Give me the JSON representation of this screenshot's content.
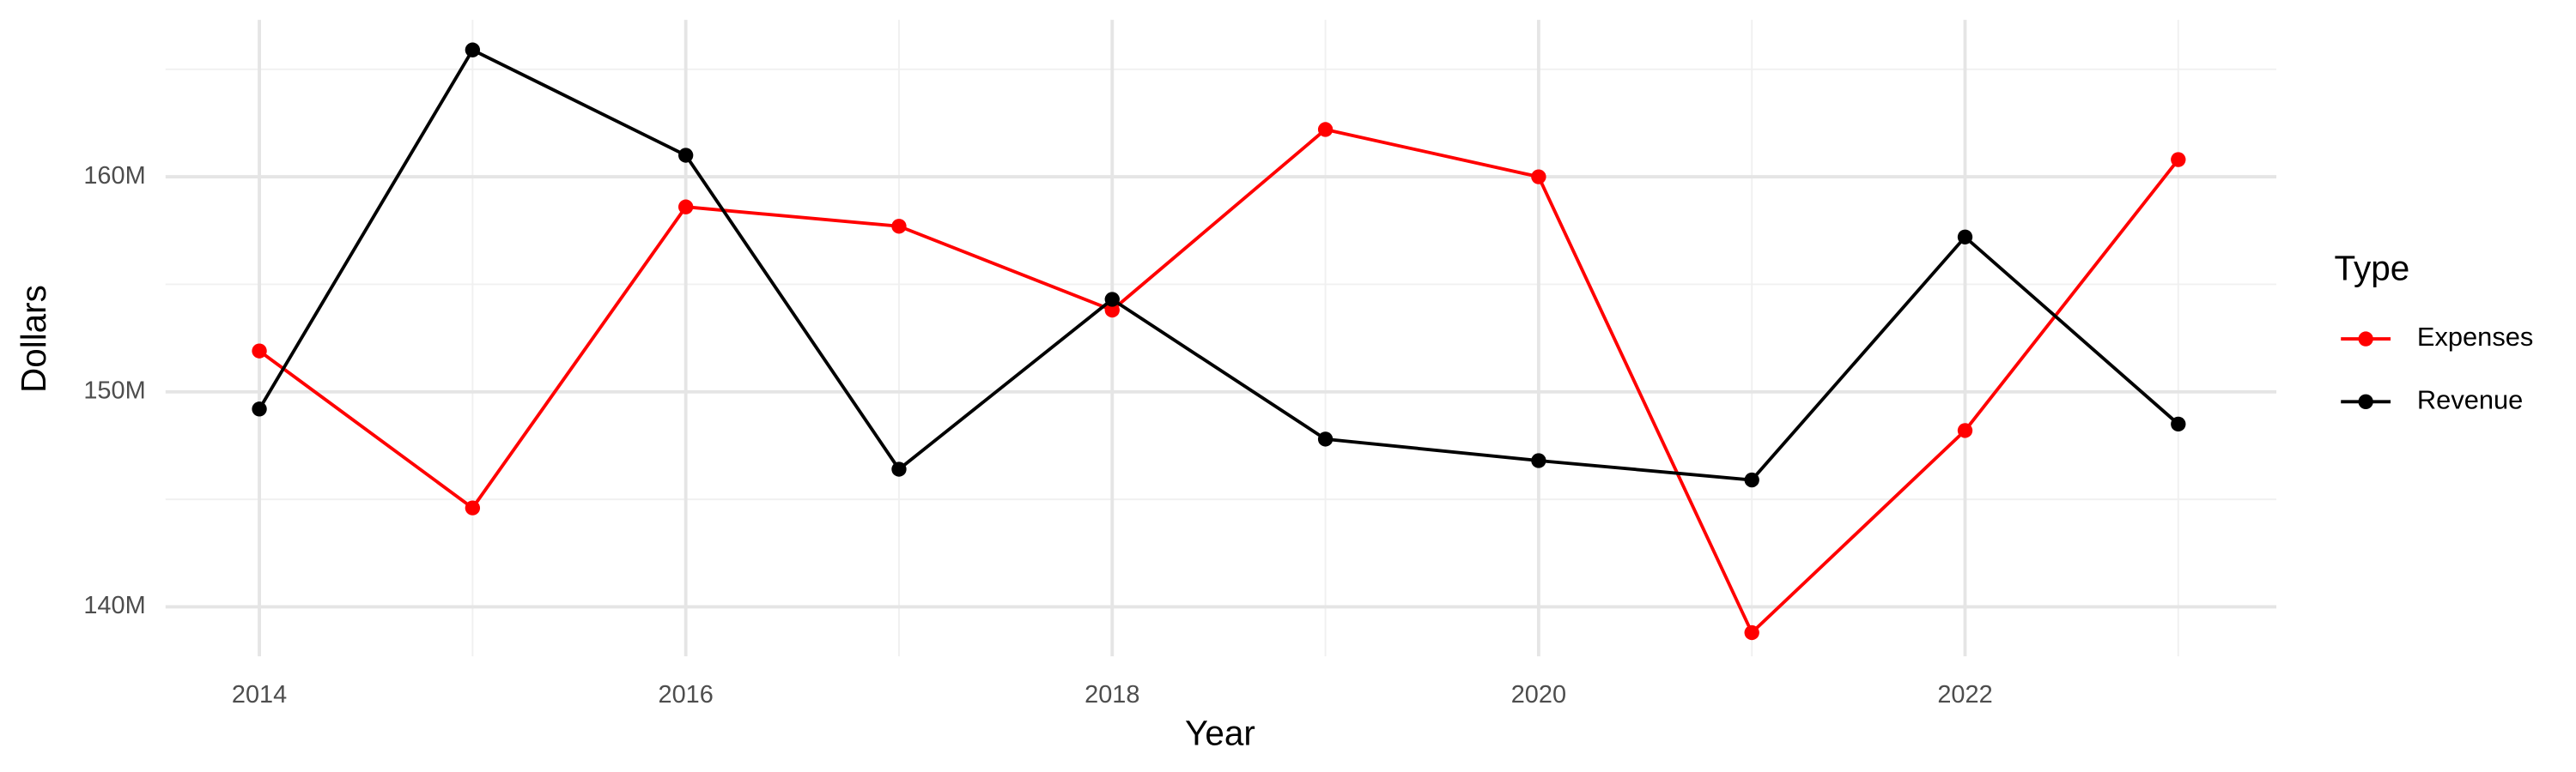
{
  "chart_data": {
    "type": "line",
    "x_label": "Year",
    "y_label": "Dollars",
    "legend_title": "Type",
    "x": [
      2014,
      2015,
      2016,
      2017,
      2018,
      2019,
      2020,
      2021,
      2022,
      2023
    ],
    "series": [
      {
        "name": "Expenses",
        "color": "#ff0000",
        "values": [
          151900000,
          144600000,
          158600000,
          157700000,
          153800000,
          162200000,
          160000000,
          138800000,
          148200000,
          160800000
        ]
      },
      {
        "name": "Revenue",
        "color": "#000000",
        "values": [
          149200000,
          165900000,
          161000000,
          146400000,
          154300000,
          147800000,
          146800000,
          145900000,
          157200000,
          148500000
        ]
      }
    ],
    "xlim": [
      2013.56,
      2023.46
    ],
    "xticks": [
      2014,
      2016,
      2018,
      2020,
      2022
    ],
    "ylim": [
      137700000,
      167300000
    ],
    "yticks": [
      {
        "value": 140000000,
        "label": "140M"
      },
      {
        "value": 150000000,
        "label": "150M"
      },
      {
        "value": 160000000,
        "label": "160M"
      }
    ],
    "grid": true,
    "legend": "right"
  }
}
